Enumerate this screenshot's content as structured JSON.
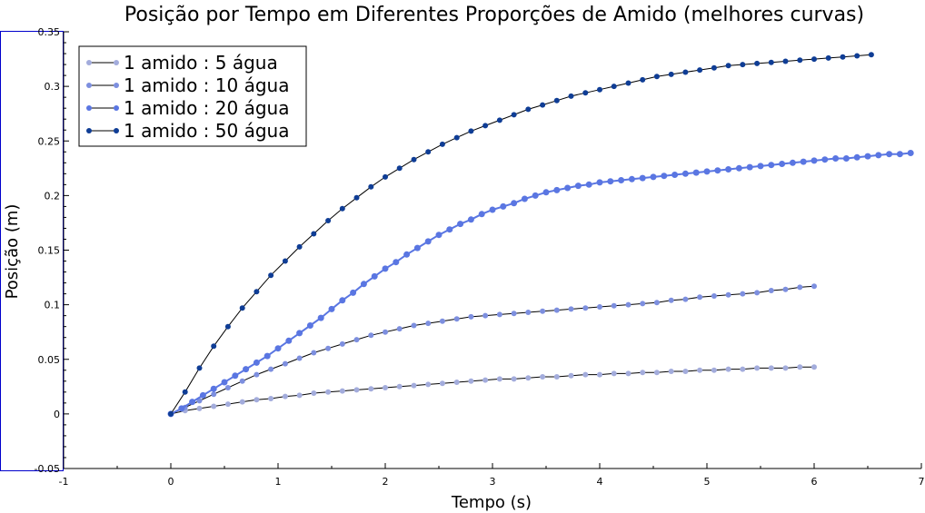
{
  "chart_data": {
    "type": "line",
    "title": "Posição por Tempo em Diferentes Proporções de Amido (melhores curvas)",
    "xlabel": "Tempo (s)",
    "ylabel": "Posição (m)",
    "xlim": [
      -1,
      7
    ],
    "ylim": [
      -0.05,
      0.35
    ],
    "x_ticks": [
      "-1",
      "0",
      "1",
      "2",
      "3",
      "4",
      "5",
      "6",
      "7"
    ],
    "y_ticks": [
      "-0.05",
      "0",
      "0.05",
      "0.1",
      "0.15",
      "0.2",
      "0.25",
      "0.3",
      "0.35"
    ],
    "legend_position": "top-left",
    "series": [
      {
        "name": "1 amido : 5 água",
        "color": "#a3acdc",
        "x": [
          0,
          0.133,
          0.267,
          0.4,
          0.533,
          0.667,
          0.8,
          0.933,
          1.067,
          1.2,
          1.333,
          1.467,
          1.6,
          1.733,
          1.867,
          2.0,
          2.133,
          2.267,
          2.4,
          2.533,
          2.667,
          2.8,
          2.933,
          3.067,
          3.2,
          3.333,
          3.467,
          3.6,
          3.733,
          3.867,
          4.0,
          4.133,
          4.267,
          4.4,
          4.533,
          4.667,
          4.8,
          4.933,
          5.067,
          5.2,
          5.333,
          5.467,
          5.6,
          5.733,
          5.867,
          6.0
        ],
        "y": [
          0,
          0.003,
          0.005,
          0.007,
          0.009,
          0.011,
          0.013,
          0.014,
          0.016,
          0.017,
          0.019,
          0.02,
          0.021,
          0.022,
          0.023,
          0.024,
          0.025,
          0.026,
          0.027,
          0.028,
          0.029,
          0.03,
          0.031,
          0.032,
          0.032,
          0.033,
          0.034,
          0.034,
          0.035,
          0.036,
          0.036,
          0.037,
          0.037,
          0.038,
          0.038,
          0.039,
          0.039,
          0.04,
          0.04,
          0.041,
          0.041,
          0.042,
          0.042,
          0.042,
          0.043,
          0.043
        ]
      },
      {
        "name": "1 amido : 10 água",
        "color": "#7d8fdf",
        "x": [
          0,
          0.133,
          0.267,
          0.4,
          0.533,
          0.667,
          0.8,
          0.933,
          1.067,
          1.2,
          1.333,
          1.467,
          1.6,
          1.733,
          1.867,
          2.0,
          2.133,
          2.267,
          2.4,
          2.533,
          2.667,
          2.8,
          2.933,
          3.067,
          3.2,
          3.333,
          3.467,
          3.6,
          3.733,
          3.867,
          4.0,
          4.133,
          4.267,
          4.4,
          4.533,
          4.667,
          4.8,
          4.933,
          5.067,
          5.2,
          5.333,
          5.467,
          5.6,
          5.733,
          5.867,
          6.0
        ],
        "y": [
          0,
          0.006,
          0.012,
          0.018,
          0.024,
          0.03,
          0.036,
          0.041,
          0.046,
          0.051,
          0.056,
          0.06,
          0.064,
          0.068,
          0.072,
          0.075,
          0.078,
          0.081,
          0.083,
          0.085,
          0.087,
          0.089,
          0.09,
          0.091,
          0.092,
          0.093,
          0.094,
          0.095,
          0.096,
          0.097,
          0.098,
          0.099,
          0.1,
          0.101,
          0.102,
          0.104,
          0.105,
          0.107,
          0.108,
          0.109,
          0.11,
          0.111,
          0.113,
          0.114,
          0.116,
          0.117
        ]
      },
      {
        "name": "1 amido : 20 água",
        "color": "#5a76e2",
        "x": [
          0,
          0.1,
          0.2,
          0.3,
          0.4,
          0.5,
          0.6,
          0.7,
          0.8,
          0.9,
          1.0,
          1.1,
          1.2,
          1.3,
          1.4,
          1.5,
          1.6,
          1.7,
          1.8,
          1.9,
          2.0,
          2.1,
          2.2,
          2.3,
          2.4,
          2.5,
          2.6,
          2.7,
          2.8,
          2.9,
          3.0,
          3.1,
          3.2,
          3.3,
          3.4,
          3.5,
          3.6,
          3.7,
          3.8,
          3.9,
          4.0,
          4.1,
          4.2,
          4.3,
          4.4,
          4.5,
          4.6,
          4.7,
          4.8,
          4.9,
          5.0,
          5.1,
          5.2,
          5.3,
          5.4,
          5.5,
          5.6,
          5.7,
          5.8,
          5.9,
          6.0,
          6.1,
          6.2,
          6.3,
          6.4,
          6.5,
          6.6,
          6.7,
          6.8,
          6.9
        ],
        "y": [
          0,
          0.005,
          0.011,
          0.017,
          0.023,
          0.029,
          0.035,
          0.041,
          0.047,
          0.053,
          0.06,
          0.067,
          0.074,
          0.081,
          0.088,
          0.096,
          0.104,
          0.111,
          0.119,
          0.126,
          0.133,
          0.139,
          0.146,
          0.152,
          0.158,
          0.164,
          0.169,
          0.174,
          0.178,
          0.183,
          0.187,
          0.19,
          0.193,
          0.197,
          0.2,
          0.203,
          0.205,
          0.207,
          0.209,
          0.21,
          0.212,
          0.213,
          0.214,
          0.215,
          0.216,
          0.217,
          0.218,
          0.219,
          0.22,
          0.221,
          0.222,
          0.223,
          0.224,
          0.225,
          0.226,
          0.227,
          0.228,
          0.229,
          0.23,
          0.231,
          0.232,
          0.233,
          0.234,
          0.234,
          0.235,
          0.236,
          0.237,
          0.238,
          0.238,
          0.239
        ]
      },
      {
        "name": "1 amido : 50 água",
        "color": "#0f3d95",
        "x": [
          0,
          0.133,
          0.267,
          0.4,
          0.533,
          0.667,
          0.8,
          0.933,
          1.067,
          1.2,
          1.333,
          1.467,
          1.6,
          1.733,
          1.867,
          2.0,
          2.133,
          2.267,
          2.4,
          2.533,
          2.667,
          2.8,
          2.933,
          3.067,
          3.2,
          3.333,
          3.467,
          3.6,
          3.733,
          3.867,
          4.0,
          4.133,
          4.267,
          4.4,
          4.533,
          4.667,
          4.8,
          4.933,
          5.067,
          5.2,
          5.333,
          5.467,
          5.6,
          5.733,
          5.867,
          6.0,
          6.133,
          6.267,
          6.4,
          6.533
        ],
        "y": [
          0,
          0.02,
          0.042,
          0.062,
          0.08,
          0.097,
          0.112,
          0.127,
          0.14,
          0.153,
          0.165,
          0.177,
          0.188,
          0.198,
          0.208,
          0.217,
          0.225,
          0.233,
          0.24,
          0.247,
          0.253,
          0.259,
          0.264,
          0.269,
          0.274,
          0.279,
          0.283,
          0.287,
          0.291,
          0.294,
          0.297,
          0.3,
          0.303,
          0.306,
          0.309,
          0.311,
          0.313,
          0.315,
          0.317,
          0.319,
          0.32,
          0.321,
          0.322,
          0.323,
          0.324,
          0.325,
          0.326,
          0.327,
          0.328,
          0.329
        ]
      }
    ]
  }
}
